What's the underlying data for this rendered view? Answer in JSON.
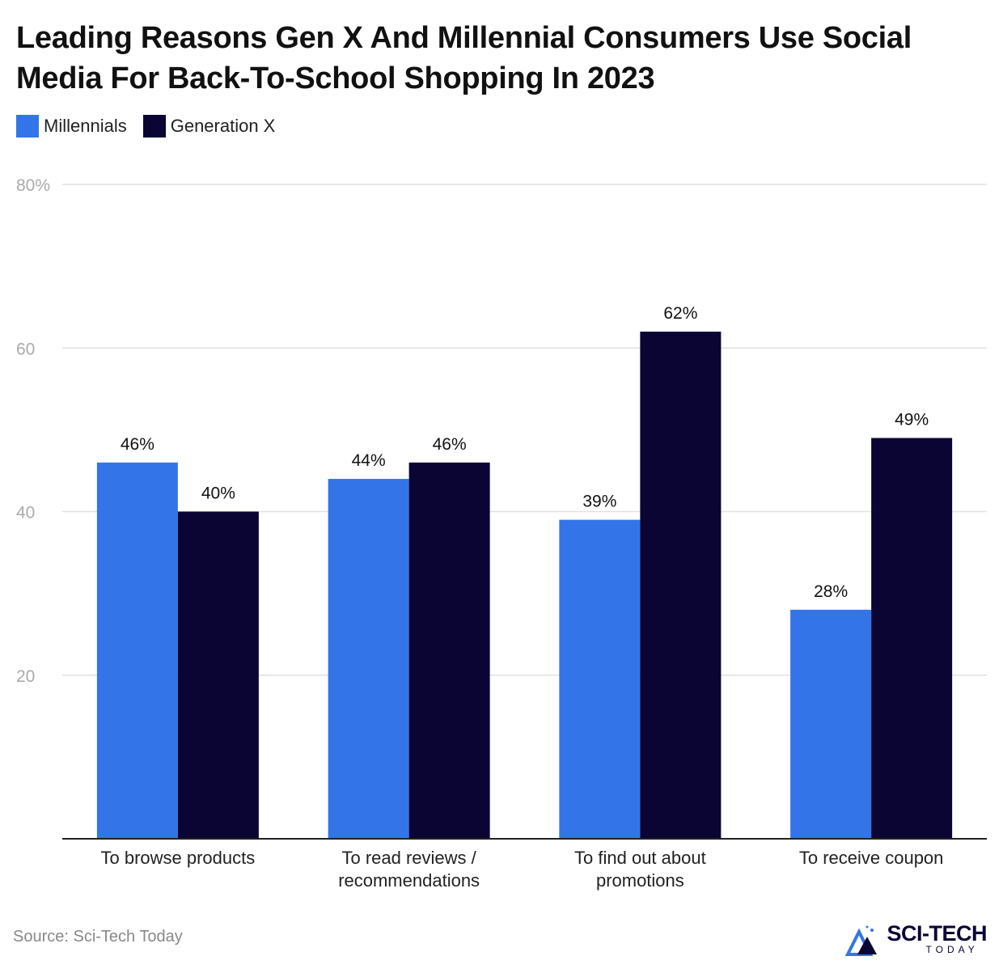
{
  "chart_data": {
    "type": "bar",
    "title": "Leading Reasons Gen X And Millennial Consumers Use Social Media For Back-To-School Shopping In 2023",
    "categories": [
      "To browse products",
      "To read reviews / recommendations",
      "To find out about promotions",
      "To receive coupon"
    ],
    "series": [
      {
        "name": "Millennials",
        "color": "#3375e8",
        "values": [
          46,
          44,
          39,
          28
        ],
        "value_labels": [
          "46%",
          "44%",
          "39%",
          "28%"
        ]
      },
      {
        "name": "Generation X",
        "color": "#0a0532",
        "values": [
          40,
          46,
          62,
          49
        ],
        "value_labels": [
          "40%",
          "46%",
          "62%",
          "49%"
        ]
      }
    ],
    "ylim": [
      0,
      80
    ],
    "yticks": [
      20,
      40,
      60,
      {
        "value": 80,
        "label": "80%"
      }
    ],
    "grid": true,
    "legend": "top-left",
    "source": "Source: Sci-Tech Today",
    "logo": {
      "main": "SCI-TECH",
      "sub": "TODAY"
    }
  }
}
